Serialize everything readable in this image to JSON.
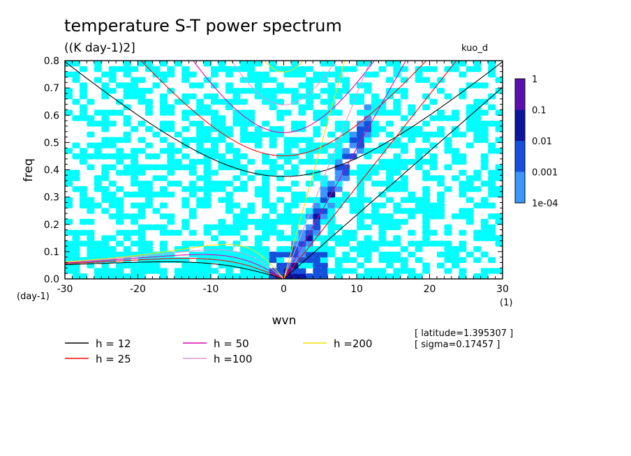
{
  "chart_data": {
    "type": "heatmap",
    "title": "temperature S-T power spectrum",
    "units_label": "((K day-1)2]",
    "run_label": "kuo_d",
    "xlabel": "wvn",
    "ylabel": "freq",
    "x_unit": "(1)",
    "y_unit": "(day-1)",
    "xlim": [
      -30,
      30
    ],
    "ylim": [
      0,
      0.8
    ],
    "x_ticks": [
      "-30",
      "-20",
      "-10",
      "0",
      "10",
      "20",
      "30"
    ],
    "x_tick_values": [
      -30,
      -20,
      -10,
      0,
      10,
      20,
      30
    ],
    "y_ticks": [
      "0.0",
      "0.1",
      "0.2",
      "0.3",
      "0.4",
      "0.5",
      "0.6",
      "0.7",
      "0.8"
    ],
    "y_tick_values": [
      0,
      0.1,
      0.2,
      0.3,
      0.4,
      0.5,
      0.6,
      0.7,
      0.8
    ],
    "colorbar": {
      "labels": [
        "1",
        "0.1",
        "0.01",
        "0.001",
        "1e-04"
      ],
      "levels": [
        1,
        0.1,
        0.01,
        0.001,
        0.0001
      ],
      "colors": [
        "#5a10b0",
        "#0a14a0",
        "#1450dc",
        "#3c96ff",
        "#00ffff"
      ]
    },
    "dispersion_curves": {
      "legend": [
        {
          "label": "h = 12",
          "h": 12,
          "color": "#000000"
        },
        {
          "label": "h = 25",
          "h": 25,
          "color": "#ff0000"
        },
        {
          "label": "h = 50",
          "h": 50,
          "color": "#e000b0"
        },
        {
          "label": "h =100",
          "h": 100,
          "color": "#e696d2"
        },
        {
          "label": "h =200",
          "h": 200,
          "color": "#f0e000"
        }
      ]
    },
    "annotations": [
      "[ latitude=1.395307 ]",
      "[ sigma=0.17457 ]"
    ]
  }
}
